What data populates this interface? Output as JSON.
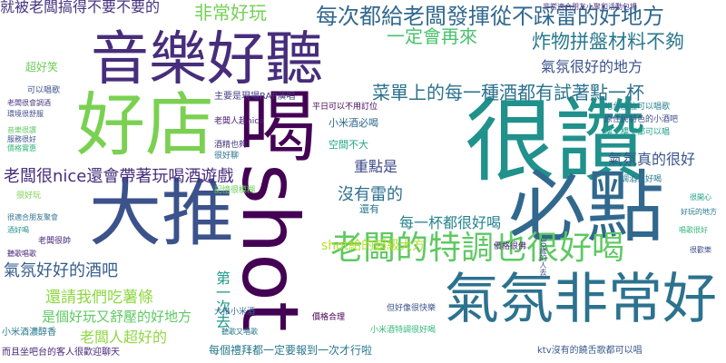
{
  "words": [
    {
      "id": "w-big-1",
      "text": "音樂好聽",
      "color": "#472d7b"
    },
    {
      "id": "w-big-2",
      "text": "好店",
      "color": "#7ad151"
    },
    {
      "id": "w-big-3",
      "text": "大推",
      "color": "#3b528b"
    },
    {
      "id": "w-big-4",
      "text": "很讚",
      "color": "#21918c"
    },
    {
      "id": "w-big-5",
      "text": "必點",
      "color": "#31688e"
    },
    {
      "id": "w-big-6",
      "text": "喝shot",
      "color": "#440154"
    },
    {
      "id": "w-big-7",
      "text": "氣氛非常好",
      "color": "#2c728e"
    },
    {
      "id": "w-big-8",
      "text": "老闆的特調也很好喝",
      "color": "#5ec962"
    },
    {
      "id": "w-mid-1",
      "text": "就被老闆搞得不要不要的",
      "color": "#46327e"
    },
    {
      "id": "w-mid-2",
      "text": "非常好玩",
      "color": "#75d054"
    },
    {
      "id": "w-mid-3",
      "text": "每次都給老闆發揮從不踩雷的好地方",
      "color": "#31688e"
    },
    {
      "id": "w-mid-4",
      "text": "一定會再來",
      "color": "#4ac16d"
    },
    {
      "id": "w-mid-5",
      "text": "炸物拼盤材料不夠",
      "color": "#2a788e"
    },
    {
      "id": "w-mid-6",
      "text": "氣氛很好的地方",
      "color": "#3b528b"
    },
    {
      "id": "w-mid-7",
      "text": "菜單上的每一種酒都有試著點一杯",
      "color": "#2c728e"
    },
    {
      "id": "w-mid-8",
      "text": "老闆很nice還會帶著玩喝酒遊戲",
      "color": "#472d7b"
    },
    {
      "id": "w-mid-9",
      "text": "重點是",
      "color": "#3e4a89"
    },
    {
      "id": "w-mid-10",
      "text": "沒有雷的",
      "color": "#2d708e"
    },
    {
      "id": "w-mid-11",
      "text": "氣氛真的很好",
      "color": "#39568c"
    },
    {
      "id": "w-mid-12",
      "text": "每一杯都很好喝",
      "color": "#25838e"
    },
    {
      "id": "w-mid-13",
      "text": "氣氛好好的酒吧",
      "color": "#365c8d"
    },
    {
      "id": "w-mid-14",
      "text": "shot給的超級大方",
      "color": "#b5de2b"
    },
    {
      "id": "w-mid-15",
      "text": "還請我們吃薯條",
      "color": "#8fd744"
    },
    {
      "id": "w-mid-16",
      "text": "是個好玩又舒壓的好地方",
      "color": "#5ec962"
    },
    {
      "id": "w-mid-17",
      "text": "老闆人超好的",
      "color": "#90d743"
    },
    {
      "id": "w-mid-18",
      "text": "每個禮拜都一定要報到一次才行啦",
      "color": "#2a788e"
    },
    {
      "id": "w-mid-19",
      "text": "第一次去",
      "color": "#1f9a8a"
    },
    {
      "id": "w-sm-1",
      "text": "超好笑",
      "color": "#6ccd5a"
    },
    {
      "id": "w-sm-2",
      "text": "小米酒必喝",
      "color": "#31688e"
    },
    {
      "id": "w-sm-3",
      "text": "空間不大",
      "color": "#22a785"
    },
    {
      "id": "w-sm-4",
      "text": "還有",
      "color": "#2a788e"
    },
    {
      "id": "w-sm-5",
      "text": "主要是現場RAP演唱",
      "color": "#433e85"
    },
    {
      "id": "w-sm-6",
      "text": "ktv沒有的饒舌歌都可以唱",
      "color": "#38598c"
    },
    {
      "id": "w-sm-7",
      "text": "非常適合朋友小聚和活動包場",
      "color": "#46327e"
    },
    {
      "id": "w-sm-8",
      "text": "小米酒特調很好喝",
      "color": "#35b779"
    },
    {
      "id": "w-sm-9",
      "text": "但好像很快樂",
      "color": "#3b528b"
    },
    {
      "id": "w-sm-10",
      "text": "價格合理",
      "color": "#440154"
    },
    {
      "id": "w-sm-11",
      "text": "大推小米酒",
      "color": "#31688e"
    },
    {
      "id": "w-sm-12",
      "text": "而且坐吧台的客人很歡迎聊天",
      "color": "#482878"
    },
    {
      "id": "w-sm-13",
      "text": "小米酒濃醇香",
      "color": "#2a788e"
    },
    {
      "id": "w-sm-14",
      "text": "老闆很帥",
      "color": "#482878"
    },
    {
      "id": "w-sm-15",
      "text": "可以唱歌",
      "color": "#3b528b"
    },
    {
      "id": "w-sm-16",
      "text": "很適合朋友聚會",
      "color": "#2c728e"
    },
    {
      "id": "w-sm-17",
      "text": "平日可以不用訂位",
      "color": "#440154"
    },
    {
      "id": "w-sm-18",
      "text": "老闆人超nice",
      "color": "#481f70"
    },
    {
      "id": "w-sm-19",
      "text": "價格很佛",
      "color": "#482475"
    },
    {
      "id": "w-sm-20",
      "text": "吧台座位可以唱歌",
      "color": "#26828e"
    },
    {
      "id": "w-sm-21",
      "text": "樓上樓下都可以唱",
      "color": "#1f9e89"
    },
    {
      "id": "w-sm-22",
      "text": "原住民特色的小酒吧",
      "color": "#3e4a89"
    },
    {
      "id": "w-sm-23",
      "text": "調酒很好喝",
      "color": "#2a788e"
    },
    {
      "id": "w-sm-24",
      "text": "很好玩",
      "color": "#7ad151"
    },
    {
      "id": "w-sm-25",
      "text": "30歲的人去",
      "color": "#3e4a89"
    },
    {
      "id": "w-sm-26",
      "text": "價格實惠",
      "color": "#35b779"
    },
    {
      "id": "w-sm-27",
      "text": "很好聊",
      "color": "#2c728e"
    },
    {
      "id": "w-sm-28",
      "text": "記憶很模糊",
      "color": "#6ccd5a"
    },
    {
      "id": "w-sm-29",
      "text": "酒精也夠",
      "color": "#46327e"
    },
    {
      "id": "w-sm-30",
      "text": "音樂很讚",
      "color": "#5ec962"
    },
    {
      "id": "w-sm-31",
      "text": "服務很好",
      "color": "#3b528b"
    },
    {
      "id": "w-sm-32",
      "text": "聽歌唱歌",
      "color": "#482878"
    },
    {
      "id": "w-sm-33",
      "text": "聽歌又唱歌",
      "color": "#2a788e"
    },
    {
      "id": "w-sm-34",
      "text": "老闆很會調酒",
      "color": "#46327e"
    },
    {
      "id": "w-sm-35",
      "text": "酒好喝",
      "color": "#21918c"
    },
    {
      "id": "w-sm-36",
      "text": "環境很舒服",
      "color": "#3e4a89"
    },
    {
      "id": "w-sm-37",
      "text": "唱歌很好",
      "color": "#35b779"
    },
    {
      "id": "w-sm-38",
      "text": "好玩的地方",
      "color": "#2a788e"
    },
    {
      "id": "w-sm-39",
      "text": "很開心",
      "color": "#1f9e89"
    },
    {
      "id": "w-sm-40",
      "text": "很歡樂",
      "color": "#3e4a89"
    }
  ]
}
